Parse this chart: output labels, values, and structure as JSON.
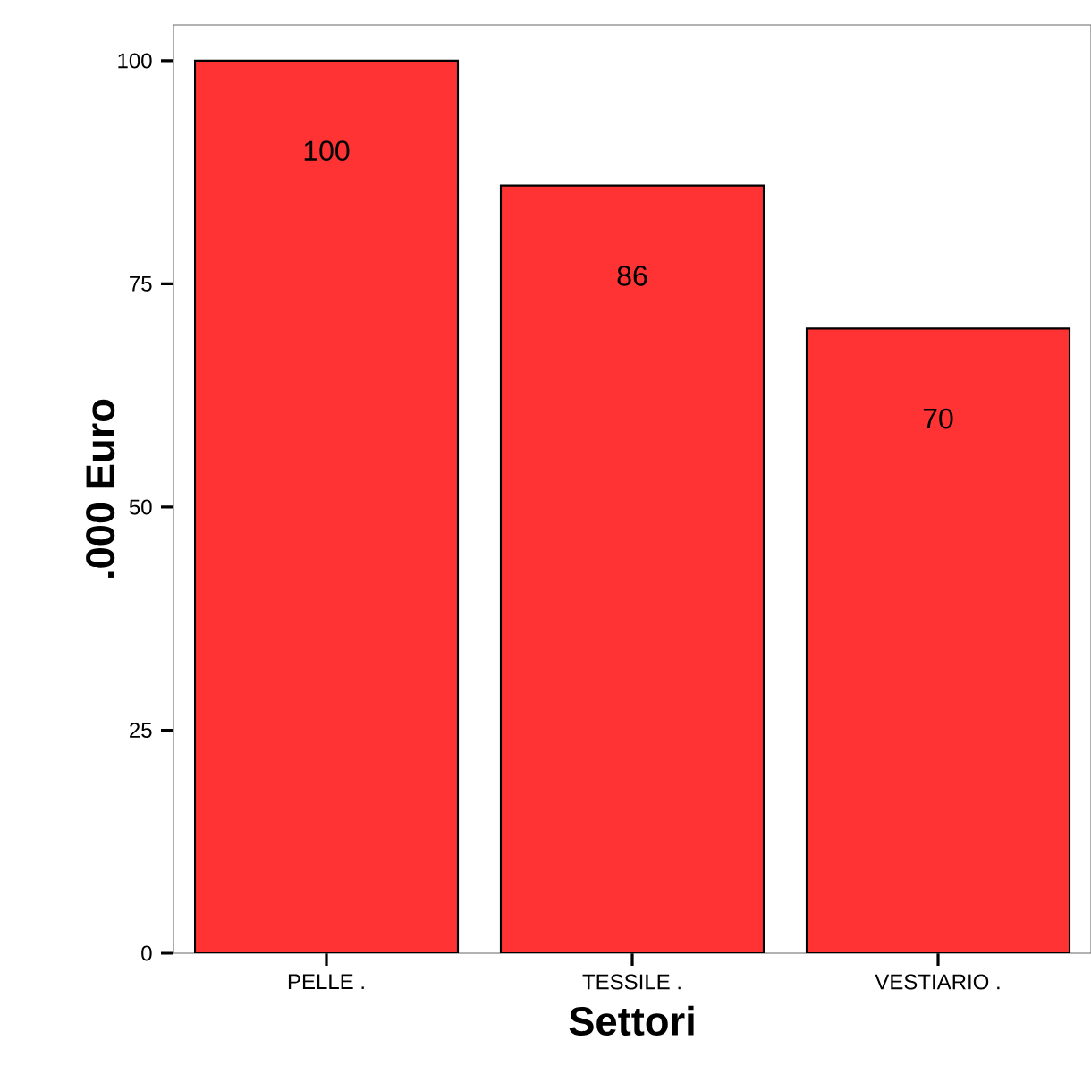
{
  "chart_data": {
    "type": "bar",
    "xlabel": "Settori",
    "ylabel": ".000 Euro",
    "categories": [
      "PELLE .",
      "TESSILE .",
      "VESTIARIO ."
    ],
    "values": [
      100,
      86,
      70
    ],
    "color": "#ff3333",
    "ylim": [
      0,
      104
    ],
    "yticks": [
      0,
      25,
      50,
      75,
      100
    ],
    "grid": false,
    "data_labels": true
  }
}
